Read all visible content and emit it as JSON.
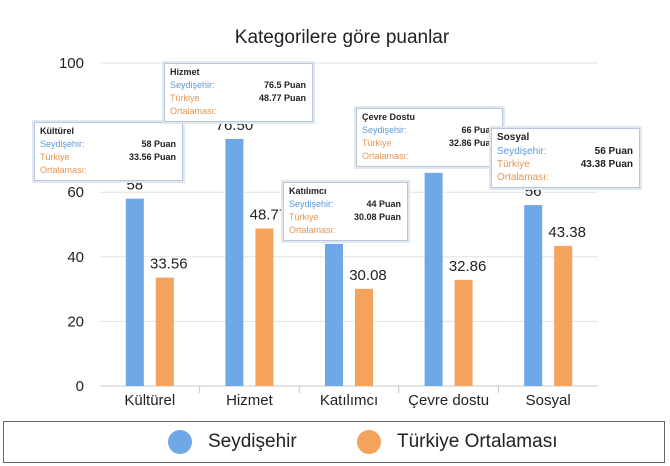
{
  "chart_data": {
    "type": "bar",
    "title": "Kategorilere göre puanlar",
    "categories": [
      "Kültürel",
      "Hizmet",
      "Katılımcı",
      "Çevre dostu",
      "Sosyal"
    ],
    "series": [
      {
        "name": "Seydişehir",
        "color": "#6fa8e6",
        "values": [
          58,
          76.5,
          44,
          66,
          56
        ],
        "labels": [
          "58",
          "76.50",
          "44",
          "66",
          "56"
        ]
      },
      {
        "name": "Türkiye Ortalaması",
        "color": "#f5a25c",
        "values": [
          33.56,
          48.77,
          30.08,
          32.86,
          43.38
        ],
        "labels": [
          "33.56",
          "48.77",
          "30.08",
          "32.86",
          "43.38"
        ]
      }
    ],
    "ylim": [
      0,
      100
    ],
    "yticks": [
      0,
      20,
      40,
      60,
      100
    ],
    "grid": true,
    "legend": "bottom"
  },
  "tooltips": [
    {
      "title": "Kültürel",
      "k1": "Seydişehir:",
      "v1": "58 Puan",
      "k2": "Türkiye Ortalaması:",
      "v2": "33.56 Puan"
    },
    {
      "title": "Hizmet",
      "k1": "Seydişehir:",
      "v1": "76.5 Puan",
      "k2": "Türkiye Ortalaması:",
      "v2": "48.77 Puan"
    },
    {
      "title": "Katılımcı",
      "k1": "Seydişehir:",
      "v1": "44 Puan",
      "k2": "Türkiye Ortalaması:",
      "v2": "30.08 Puan"
    },
    {
      "title": "Çevre Dostu",
      "k1": "Seydişehir:",
      "v1": "66 Puan",
      "k2": "Türkiye Ortalaması:",
      "v2": "32.86 Puan"
    },
    {
      "title": "Sosyal",
      "k1": "Seydişehir:",
      "v1": "56 Puan",
      "k2": "Türkiye Ortalaması:",
      "v2": "43.38 Puan"
    }
  ]
}
